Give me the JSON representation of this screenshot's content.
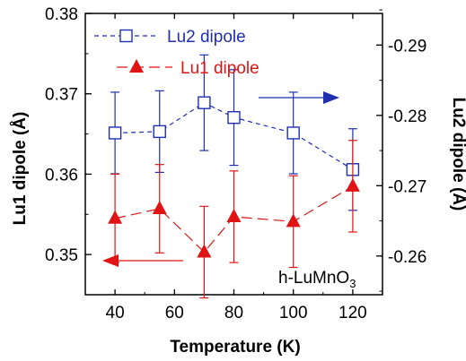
{
  "chart_data": {
    "type": "line",
    "xlabel": "Temperature (K)",
    "ylabel_left": "Lu1 dipole (Å)",
    "ylabel_right": "Lu2 dipole (Å)",
    "xlim": [
      30,
      130
    ],
    "xticks": [
      "40",
      "60",
      "80",
      "100",
      "120"
    ],
    "ylim_left": [
      0.345,
      0.38
    ],
    "yticks_left": [
      "0.35",
      "0.36",
      "0.37",
      "0.38"
    ],
    "ylim_right": [
      -0.2545,
      -0.2945
    ],
    "yticks_right": [
      "-0.26",
      "-0.27",
      "-0.28",
      "-0.29"
    ],
    "annotation": {
      "text": "h-LuMnO",
      "subscript": "3"
    },
    "series": [
      {
        "name": "Lu2 dipole",
        "axis": "right",
        "color": "#1f2fb0",
        "marker": "open-square",
        "line_style": "dashed",
        "x": [
          40,
          55,
          70,
          80,
          100,
          120
        ],
        "y": [
          -0.2775,
          -0.2777,
          -0.2818,
          -0.2797,
          -0.2775,
          -0.2723
        ],
        "err": [
          0.0058,
          0.0058,
          0.0068,
          0.0068,
          0.0058,
          0.0058
        ]
      },
      {
        "name": "Lu1 dipole",
        "axis": "left",
        "color": "#e01414",
        "marker": "filled-triangle",
        "line_style": "long-dashed",
        "x": [
          40,
          55,
          70,
          80,
          100,
          120
        ],
        "y": [
          0.3545,
          0.3557,
          0.3503,
          0.3547,
          0.3541,
          0.3585
        ],
        "err": [
          0.0055,
          0.0055,
          0.0057,
          0.0057,
          0.0057,
          0.0057
        ]
      }
    ]
  }
}
